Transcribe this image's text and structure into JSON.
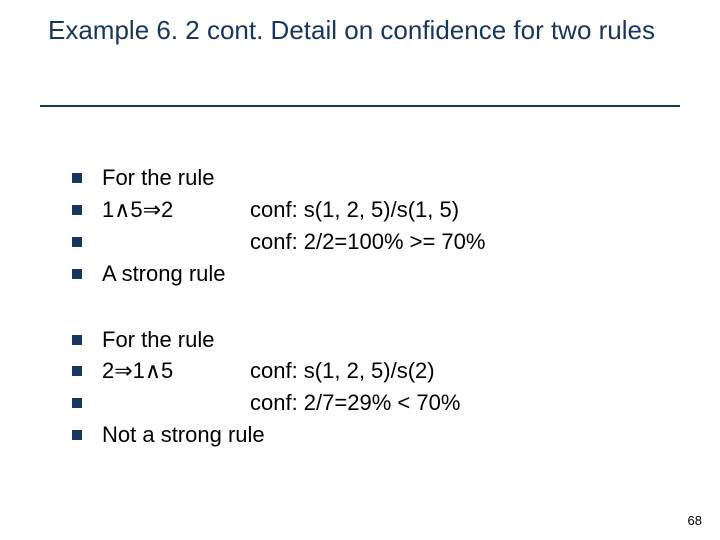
{
  "colors": {
    "title": "#17365d",
    "bullet": "#17365d",
    "rule": "#17365d",
    "text": "#000000",
    "background": "#ffffff"
  },
  "title": "Example 6. 2 cont. Detail on confidence for two rules",
  "groups": [
    {
      "lines": [
        {
          "a": "For the rule",
          "b": ""
        },
        {
          "a": "1∧5⇒2",
          "b": "conf: s(1, 2, 5)/s(1, 5)"
        },
        {
          "a": "",
          "b": "conf: 2/2=100% >= 70%"
        },
        {
          "a": "A strong rule",
          "b": ""
        }
      ]
    },
    {
      "lines": [
        {
          "a": "For the rule",
          "b": ""
        },
        {
          "a": "2⇒1∧5",
          "b": "conf: s(1, 2, 5)/s(2)"
        },
        {
          "a": "",
          "b": "conf: 2/7=29% < 70%"
        },
        {
          "a": "Not a strong rule",
          "b": ""
        }
      ]
    }
  ],
  "page_number": "68"
}
